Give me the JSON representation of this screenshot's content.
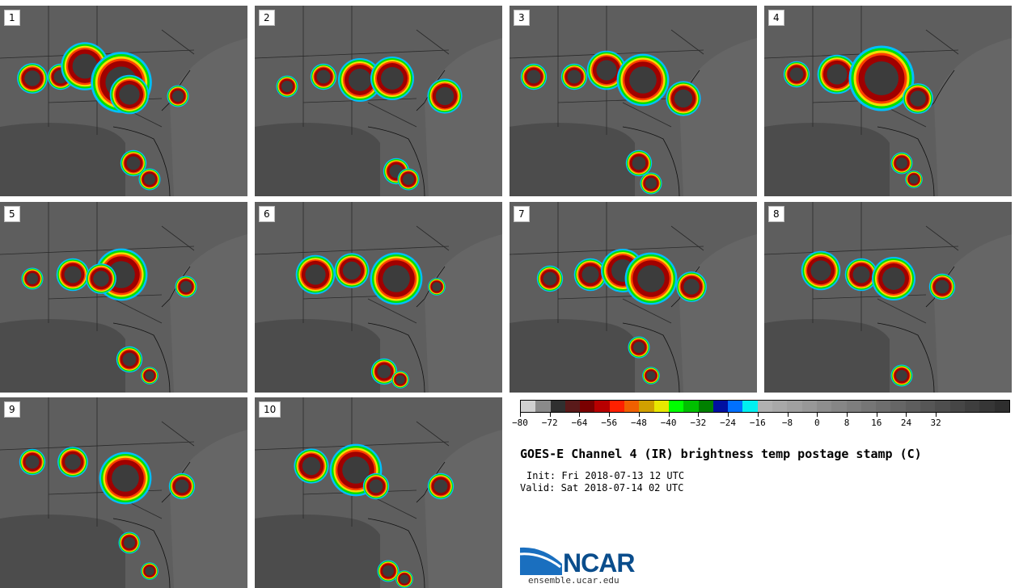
{
  "panels": [
    {
      "label": "1"
    },
    {
      "label": "2"
    },
    {
      "label": "3"
    },
    {
      "label": "4"
    },
    {
      "label": "5"
    },
    {
      "label": "6"
    },
    {
      "label": "7"
    },
    {
      "label": "8"
    },
    {
      "label": "9"
    },
    {
      "label": "10"
    }
  ],
  "colorbar": {
    "colors": [
      "#d0d0d0",
      "#8a8a8a",
      "#303030",
      "#5a1a1a",
      "#7a0000",
      "#b80000",
      "#ff2000",
      "#f06000",
      "#d0a000",
      "#e8e800",
      "#00ff00",
      "#00c000",
      "#008000",
      "#0010a0",
      "#0070ff",
      "#00f0f0",
      "#b0b0b0",
      "#a8a8a8",
      "#a0a0a0",
      "#989898",
      "#8e8e8e",
      "#868686",
      "#7e7e7e",
      "#767676",
      "#6e6e6e",
      "#666666",
      "#5e5e5e",
      "#565656",
      "#4e4e4e",
      "#464646",
      "#3e3e3e",
      "#363636",
      "#2e2e2e"
    ],
    "tick_labels": [
      "−80",
      "−72",
      "−64",
      "−56",
      "−48",
      "−40",
      "−32",
      "−24",
      "−16",
      "−8",
      "0",
      "8",
      "16",
      "24",
      "32"
    ]
  },
  "title": "GOES-E Channel 4 (IR) brightness temp postage stamp (C)",
  "init": "Init: Fri 2018-07-13 12 UTC",
  "valid": "Valid: Sat 2018-07-14 02 UTC",
  "logo": {
    "name": "NCAR",
    "url": "ensemble.ucar.edu"
  },
  "colors": {
    "background_map": "#5e5e5e",
    "cold_cloud": "#3a3a3a"
  }
}
